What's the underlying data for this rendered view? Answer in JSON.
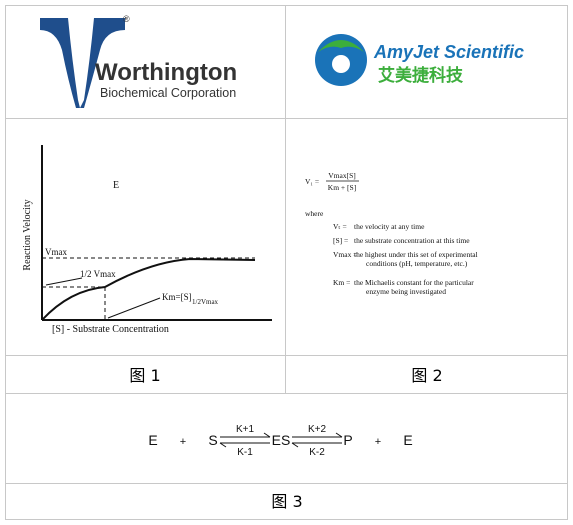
{
  "logos": {
    "worthington": {
      "name": "Worthington",
      "subtitle": "Biochemical Corporation",
      "mark": "®"
    },
    "amyjet": {
      "name": "AmyJet Scientific",
      "chinese": "艾美捷科技"
    }
  },
  "figure1": {
    "y_label": "Reaction Velocity",
    "enzyme": "E",
    "vmax": "Vmax",
    "half_vmax": "1/2 Vmax",
    "km": "Km=[S]",
    "km_sub": "1/2Vmax",
    "x_label": "[S] - Substrate Concentration",
    "caption": "图 1"
  },
  "figure2": {
    "lhs": "V₁ =",
    "numerator": "Vmax[S]",
    "denominator": "Km + [S]",
    "where": "where",
    "definitions": [
      {
        "term": "Vₜ =",
        "lines": [
          "the velocity at any time"
        ]
      },
      {
        "term": "[S] =",
        "lines": [
          "the substrate concentration at this time"
        ]
      },
      {
        "term": "Vmax =",
        "lines": [
          "the highest under this set of experimental",
          "conditions (pH, temperature, etc.)"
        ]
      },
      {
        "term": "Km =",
        "lines": [
          "the Michaelis constant for the particular",
          "enzyme being investigated"
        ]
      }
    ],
    "caption": "图 2"
  },
  "figure3": {
    "species": [
      "E",
      "+",
      "S",
      "ES",
      "P",
      "+",
      "E"
    ],
    "k_forward_1": "K+1",
    "k_reverse_1": "K-1",
    "k_forward_2": "K+2",
    "k_reverse_2": "K-2",
    "caption": "图 3"
  }
}
